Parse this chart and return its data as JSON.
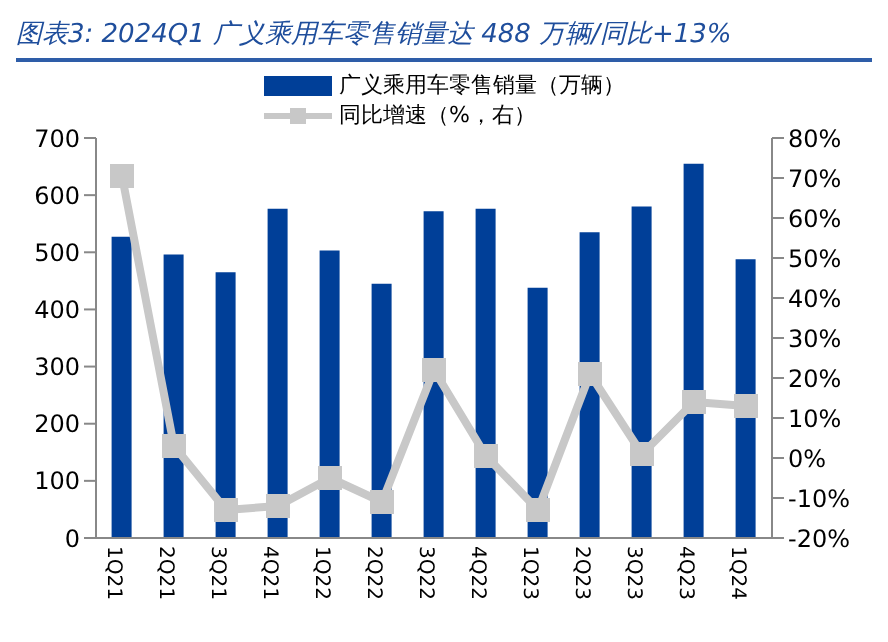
{
  "chart_data": {
    "type": "bar",
    "title": "图表3:  2024Q1 广义乘用车零售销量达 488 万辆/同比+13%",
    "categories": [
      "1Q21",
      "2Q21",
      "3Q21",
      "4Q21",
      "1Q22",
      "2Q22",
      "3Q22",
      "4Q22",
      "1Q23",
      "2Q23",
      "3Q23",
      "4Q23",
      "1Q24"
    ],
    "series": [
      {
        "name": "广义乘用车零售销量（万辆）",
        "color": "#003f98",
        "values": [
          527,
          496,
          465,
          576,
          503,
          445,
          572,
          576,
          438,
          535,
          580,
          655,
          488
        ]
      },
      {
        "name": "同比增速（%，右）",
        "type": "line",
        "axis": "y2",
        "color": "#c8c8c8",
        "values": [
          70.5,
          3,
          -13,
          -12,
          -5,
          -11,
          22,
          0.5,
          -13,
          21,
          1,
          14,
          13
        ]
      }
    ],
    "ylim": [
      0,
      700
    ],
    "yticks": [
      0,
      100,
      200,
      300,
      400,
      500,
      600,
      700
    ],
    "y2lim": [
      -20,
      80
    ],
    "y2ticks": [
      {
        "value": -20,
        "label": "-20%"
      },
      {
        "value": -10,
        "label": "-10%"
      },
      {
        "value": 0,
        "label": "0%"
      },
      {
        "value": 10,
        "label": "10%"
      },
      {
        "value": 20,
        "label": "20%"
      },
      {
        "value": 30,
        "label": "30%"
      },
      {
        "value": 40,
        "label": "40%"
      },
      {
        "value": 50,
        "label": "50%"
      },
      {
        "value": 60,
        "label": "60%"
      },
      {
        "value": 70,
        "label": "70%"
      },
      {
        "value": 80,
        "label": "80%"
      }
    ],
    "legend": "top",
    "marker": "square",
    "grid": false
  }
}
